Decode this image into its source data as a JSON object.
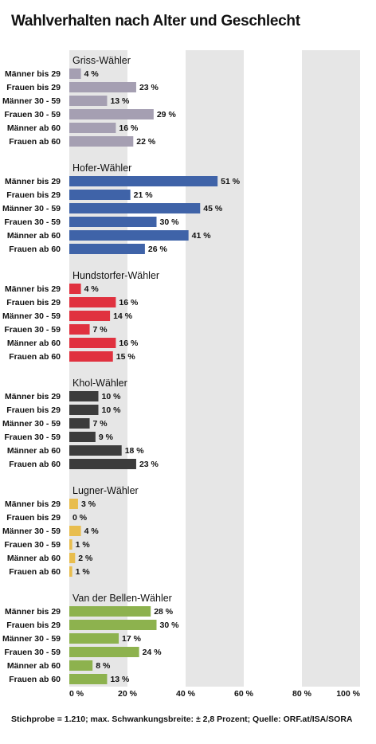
{
  "title": "Wahlverhalten nach Alter und Geschlecht",
  "footer": "Stichprobe = 1.210; max. Schwankungsbreite: ± 2,8 Prozent; Quelle: ORF.at/ISA/SORA",
  "chart_data": {
    "type": "bar",
    "orientation": "horizontal",
    "xlim": [
      0,
      100
    ],
    "x_ticks": [
      "0 %",
      "20 %",
      "40 %",
      "60 %",
      "80 %",
      "100 %"
    ],
    "categories": [
      "Männer bis 29",
      "Frauen bis 29",
      "Männer 30 - 59",
      "Frauen 30 - 59",
      "Männer ab 60",
      "Frauen ab 60"
    ],
    "groups": [
      {
        "name": "Griss-Wähler",
        "color": "#a59fb2",
        "values": [
          4,
          23,
          13,
          29,
          16,
          22
        ],
        "labels": [
          "4 %",
          "23 %",
          "13 %",
          "29 %",
          "16 %",
          "22 %"
        ]
      },
      {
        "name": "Hofer-Wähler",
        "color": "#3f63a8",
        "values": [
          51,
          21,
          45,
          30,
          41,
          26
        ],
        "labels": [
          "51 %",
          "21 %",
          "45 %",
          "30 %",
          "41 %",
          "26 %"
        ]
      },
      {
        "name": "Hundstorfer-Wähler",
        "color": "#e0313f",
        "values": [
          4,
          16,
          14,
          7,
          16,
          15
        ],
        "labels": [
          "4 %",
          "16 %",
          "14 %",
          "7 %",
          "16 %",
          "15 %"
        ]
      },
      {
        "name": "Khol-Wähler",
        "color": "#3c3c3c",
        "values": [
          10,
          10,
          7,
          9,
          18,
          23
        ],
        "labels": [
          "10 %",
          "10 %",
          "7 %",
          "9 %",
          "18 %",
          "23 %"
        ]
      },
      {
        "name": "Lugner-Wähler",
        "color": "#e8bd4e",
        "values": [
          3,
          0,
          4,
          1,
          2,
          1
        ],
        "labels": [
          "3 %",
          "0 %",
          "4 %",
          "1 %",
          "2 %",
          "1 %"
        ]
      },
      {
        "name": "Van der Bellen-Wähler",
        "color": "#8db24e",
        "values": [
          28,
          30,
          17,
          24,
          8,
          13
        ],
        "labels": [
          "28 %",
          "30 %",
          "17 %",
          "24 %",
          "8 %",
          "13 %"
        ]
      }
    ]
  }
}
